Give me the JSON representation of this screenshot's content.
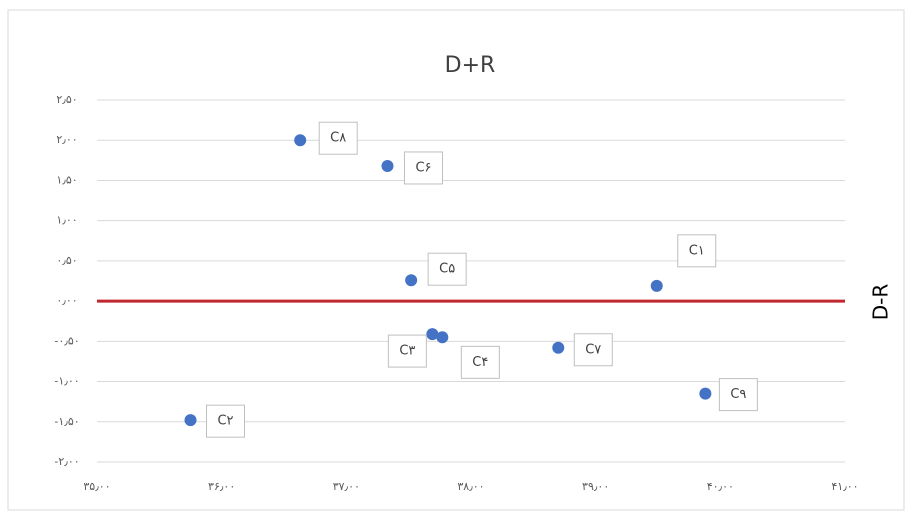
{
  "chart_data": {
    "type": "scatter",
    "title": "D+R",
    "y_label": "D-R",
    "xlim": [
      35,
      41
    ],
    "xticks": [
      {
        "value": 35,
        "label": "۳۵٫۰۰"
      },
      {
        "value": 36,
        "label": "۳۶٫۰۰"
      },
      {
        "value": 37,
        "label": "۳۷٫۰۰"
      },
      {
        "value": 38,
        "label": "۳۸٫۰۰"
      },
      {
        "value": 39,
        "label": "۳۹٫۰۰"
      },
      {
        "value": 40,
        "label": "۴۰٫۰۰"
      },
      {
        "value": 41,
        "label": "۴۱٫۰۰"
      }
    ],
    "ylim": [
      -2,
      2.5
    ],
    "yticks": [
      {
        "value": -2,
        "label": "-۲٫۰۰"
      },
      {
        "value": -1.5,
        "label": "-۱٫۵۰"
      },
      {
        "value": -1,
        "label": "-۱٫۰۰"
      },
      {
        "value": -0.5,
        "label": "-۰٫۵۰"
      },
      {
        "value": 0,
        "label": "۰٫۰۰"
      },
      {
        "value": 0.5,
        "label": "۰٫۵۰"
      },
      {
        "value": 1,
        "label": "۱٫۰۰"
      },
      {
        "value": 1.5,
        "label": "۱٫۵۰"
      },
      {
        "value": 2,
        "label": "۲٫۰۰"
      },
      {
        "value": 2.5,
        "label": "۲٫۵۰"
      }
    ],
    "grid": true,
    "reference_line": 0,
    "reference_color": "#c0282d",
    "color": "#4472c4",
    "labels": [
      "C۸",
      "C۶",
      "C۵",
      "C۱",
      "C۳",
      "C۴",
      "C۷",
      "C۹",
      "C۲"
    ],
    "x": [
      36.63,
      37.33,
      37.52,
      39.49,
      37.69,
      37.77,
      38.7,
      39.88,
      35.75
    ],
    "y": [
      2.0,
      1.68,
      0.26,
      0.19,
      -0.41,
      -0.45,
      -0.58,
      -1.15,
      -1.48
    ]
  }
}
